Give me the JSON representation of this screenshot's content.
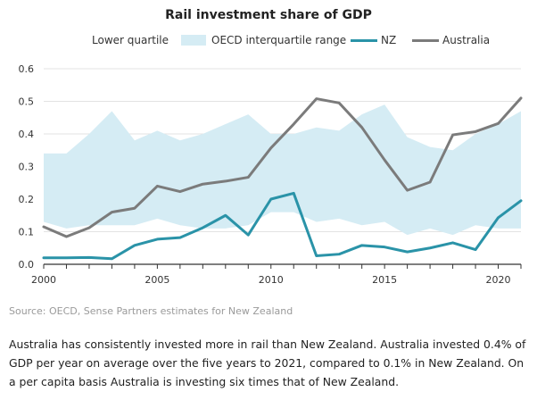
{
  "chart_data": {
    "type": "line",
    "title": "Rail investment share of GDP",
    "xlabel": "",
    "ylabel": "",
    "xlim": [
      2000,
      2021
    ],
    "ylim": [
      0,
      0.6
    ],
    "x_ticks": [
      "2000",
      "2005",
      "2010",
      "2015",
      "2020"
    ],
    "y_ticks": [
      "0.0",
      "0.1",
      "0.2",
      "0.3",
      "0.4",
      "0.5",
      "0.6"
    ],
    "grid": "horizontal",
    "legend_position": "top",
    "x": [
      2000,
      2001,
      2002,
      2003,
      2004,
      2005,
      2006,
      2007,
      2008,
      2009,
      2010,
      2011,
      2012,
      2013,
      2014,
      2015,
      2016,
      2017,
      2018,
      2019,
      2020,
      2021
    ],
    "band": {
      "lower_name": "Lower quartile",
      "name": "OECD interquartile range",
      "color": "#d5ecf4",
      "lower": [
        0.13,
        0.11,
        0.12,
        0.12,
        0.12,
        0.14,
        0.12,
        0.11,
        0.11,
        0.12,
        0.16,
        0.16,
        0.13,
        0.14,
        0.12,
        0.13,
        0.09,
        0.11,
        0.09,
        0.12,
        0.11,
        0.11
      ],
      "upper": [
        0.34,
        0.34,
        0.4,
        0.47,
        0.38,
        0.41,
        0.38,
        0.4,
        0.43,
        0.46,
        0.4,
        0.4,
        0.42,
        0.41,
        0.46,
        0.49,
        0.39,
        0.36,
        0.35,
        0.4,
        0.43,
        0.47
      ]
    },
    "series": [
      {
        "name": "NZ",
        "color": "#2a93a8",
        "values": [
          0.02,
          0.02,
          0.021,
          0.017,
          0.058,
          0.077,
          0.082,
          0.112,
          0.15,
          0.09,
          0.2,
          0.218,
          0.026,
          0.031,
          0.058,
          0.053,
          0.038,
          0.05,
          0.066,
          0.045,
          0.143,
          0.195
        ]
      },
      {
        "name": "Australia",
        "color": "#7b7b7b",
        "values": [
          0.115,
          0.085,
          0.112,
          0.16,
          0.172,
          0.24,
          0.223,
          0.246,
          0.255,
          0.267,
          0.357,
          0.43,
          0.508,
          0.495,
          0.42,
          0.32,
          0.227,
          0.252,
          0.397,
          0.407,
          0.432,
          0.51
        ]
      }
    ]
  },
  "legend": {
    "lower_quartile": "Lower quartile",
    "band": "OECD interquartile range",
    "nz": "NZ",
    "australia": "Australia"
  },
  "source": "Source: OECD, Sense Partners estimates for New Zealand",
  "caption": "Australia has consistently invested more in rail than New Zealand. Australia invested 0.4% of GDP per year on average over the five years to 2021, compared to 0.1% in New Zealand. On a per capita basis Australia is investing six times that of New Zealand."
}
